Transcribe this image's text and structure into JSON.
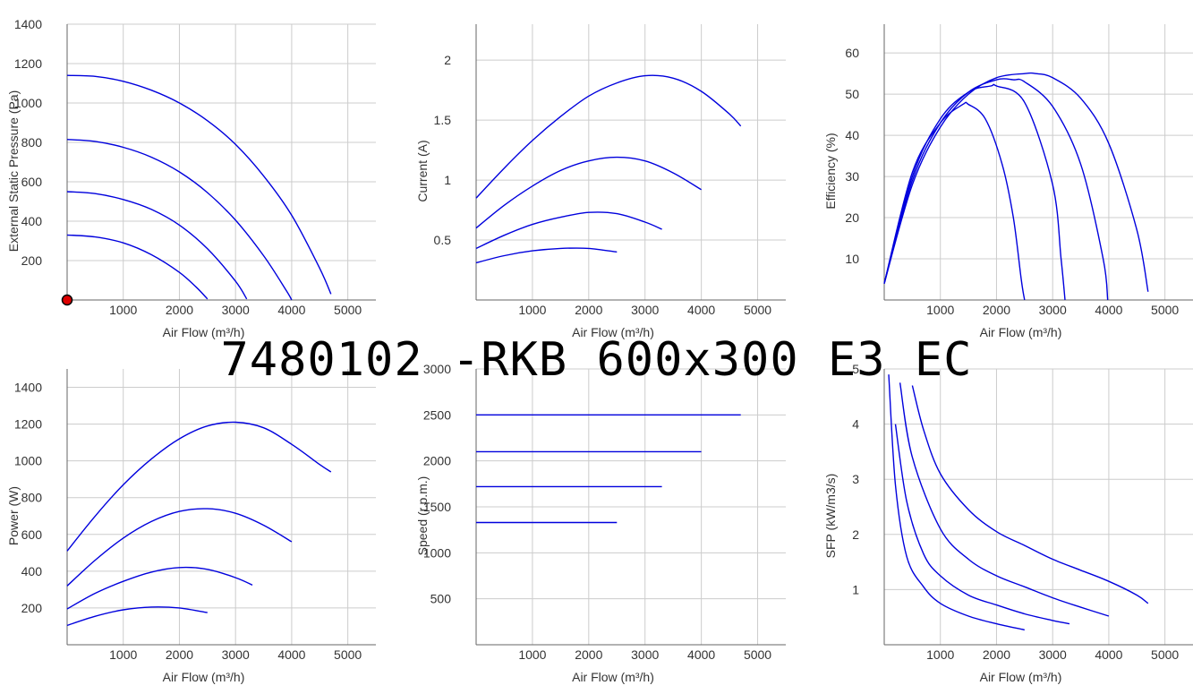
{
  "title": "7480102 -RKB 600x300 E3 EC",
  "colors": {
    "curve": "#0000dd",
    "grid": "#cccccc",
    "axis": "#666666",
    "marker": "#dd0000"
  },
  "chart_data": [
    {
      "type": "line",
      "xlabel": "Air Flow (m³/h)",
      "ylabel": "External Static Pressure (Pa)",
      "xlim": [
        0,
        5500
      ],
      "ylim": [
        0,
        1400
      ],
      "xticks": [
        1000,
        2000,
        3000,
        4000,
        5000
      ],
      "yticks": [
        200,
        400,
        600,
        800,
        1000,
        1200,
        1400
      ],
      "grid": true,
      "marker": {
        "x": 0,
        "y": 0
      },
      "series": [
        {
          "x": [
            0,
            500,
            1000,
            1500,
            2000,
            2500,
            3000,
            3500,
            4000,
            4500,
            4700
          ],
          "y": [
            1140,
            1135,
            1110,
            1065,
            1000,
            910,
            790,
            630,
            430,
            160,
            30
          ]
        },
        {
          "x": [
            0,
            500,
            1000,
            1500,
            2000,
            2500,
            3000,
            3500,
            3900,
            4000
          ],
          "y": [
            815,
            805,
            775,
            725,
            650,
            545,
            405,
            225,
            50,
            0
          ]
        },
        {
          "x": [
            0,
            500,
            1000,
            1500,
            2000,
            2500,
            3000,
            3200
          ],
          "y": [
            550,
            540,
            510,
            460,
            380,
            260,
            95,
            5
          ]
        },
        {
          "x": [
            0,
            500,
            1000,
            1500,
            2000,
            2300,
            2500
          ],
          "y": [
            330,
            320,
            290,
            230,
            140,
            65,
            5
          ]
        }
      ]
    },
    {
      "type": "line",
      "xlabel": "Air Flow (m³/h)",
      "ylabel": "Current (A)",
      "xlim": [
        0,
        5500
      ],
      "ylim": [
        0,
        2.3
      ],
      "xticks": [
        1000,
        2000,
        3000,
        4000,
        5000
      ],
      "yticks": [
        0.5,
        1,
        1.5,
        2
      ],
      "ytick_labels": [
        "0.5",
        "1",
        "1.5",
        "2"
      ],
      "grid": true,
      "series": [
        {
          "x": [
            0,
            500,
            1000,
            1500,
            2000,
            2500,
            3000,
            3500,
            4000,
            4500,
            4700
          ],
          "y": [
            0.85,
            1.1,
            1.33,
            1.53,
            1.7,
            1.81,
            1.87,
            1.85,
            1.74,
            1.55,
            1.45
          ]
        },
        {
          "x": [
            0,
            500,
            1000,
            1500,
            2000,
            2500,
            3000,
            3500,
            4000
          ],
          "y": [
            0.6,
            0.79,
            0.95,
            1.08,
            1.16,
            1.19,
            1.16,
            1.06,
            0.92
          ]
        },
        {
          "x": [
            0,
            500,
            1000,
            1500,
            2000,
            2500,
            3000,
            3300
          ],
          "y": [
            0.43,
            0.54,
            0.63,
            0.69,
            0.73,
            0.72,
            0.65,
            0.59
          ]
        },
        {
          "x": [
            0,
            500,
            1000,
            1500,
            2000,
            2500
          ],
          "y": [
            0.31,
            0.37,
            0.41,
            0.43,
            0.43,
            0.4
          ]
        }
      ]
    },
    {
      "type": "line",
      "xlabel": "Air Flow (m³/h)",
      "ylabel": "Efficiency (%)",
      "xlim": [
        0,
        5500
      ],
      "ylim": [
        0,
        67
      ],
      "xticks": [
        1000,
        2000,
        3000,
        4000,
        5000
      ],
      "yticks": [
        10,
        20,
        30,
        40,
        50,
        60
      ],
      "grid": true,
      "series": [
        {
          "x": [
            0,
            500,
            1000,
            1500,
            2000,
            2500,
            2700,
            3000,
            3500,
            4000,
            4500,
            4700
          ],
          "y": [
            4,
            28,
            42,
            50,
            54,
            55,
            55,
            54,
            49,
            38,
            17,
            2
          ]
        },
        {
          "x": [
            0,
            500,
            1000,
            1500,
            2000,
            2300,
            2500,
            3000,
            3500,
            3900,
            3980
          ],
          "y": [
            4,
            29,
            43,
            50.5,
            53.5,
            53.5,
            53,
            47,
            33,
            10,
            0
          ]
        },
        {
          "x": [
            0,
            500,
            1000,
            1500,
            1900,
            2000,
            2500,
            3000,
            3150,
            3220
          ],
          "y": [
            4,
            30,
            44,
            50.5,
            52,
            52,
            48,
            28,
            10,
            0
          ]
        },
        {
          "x": [
            0,
            500,
            1000,
            1400,
            1500,
            1800,
            2100,
            2300,
            2440,
            2500
          ],
          "y": [
            4,
            31,
            43,
            47.5,
            47.5,
            44,
            33,
            20,
            5,
            0
          ]
        }
      ]
    },
    {
      "type": "line",
      "xlabel": "Air Flow (m³/h)",
      "ylabel": "Power (W)",
      "xlim": [
        0,
        5500
      ],
      "ylim": [
        0,
        1500
      ],
      "xticks": [
        1000,
        2000,
        3000,
        4000,
        5000
      ],
      "yticks": [
        200,
        400,
        600,
        800,
        1000,
        1200,
        1400
      ],
      "grid": true,
      "series": [
        {
          "x": [
            0,
            500,
            1000,
            1500,
            2000,
            2500,
            3000,
            3500,
            4000,
            4500,
            4700
          ],
          "y": [
            510,
            700,
            870,
            1010,
            1120,
            1190,
            1210,
            1180,
            1090,
            980,
            940
          ]
        },
        {
          "x": [
            0,
            500,
            1000,
            1500,
            2000,
            2500,
            3000,
            3500,
            4000
          ],
          "y": [
            320,
            460,
            580,
            670,
            725,
            740,
            715,
            650,
            560
          ]
        },
        {
          "x": [
            0,
            500,
            1000,
            1500,
            2000,
            2500,
            3000,
            3300
          ],
          "y": [
            195,
            280,
            345,
            395,
            420,
            410,
            365,
            325
          ]
        },
        {
          "x": [
            0,
            500,
            1000,
            1500,
            2000,
            2500
          ],
          "y": [
            105,
            155,
            190,
            205,
            200,
            175
          ]
        }
      ]
    },
    {
      "type": "line",
      "xlabel": "Air Flow (m³/h)",
      "ylabel": "Speed (r.p.m.)",
      "xlim": [
        0,
        5500
      ],
      "ylim": [
        0,
        3000
      ],
      "xticks": [
        1000,
        2000,
        3000,
        4000,
        5000
      ],
      "yticks": [
        500,
        1000,
        1500,
        2000,
        2500,
        3000
      ],
      "grid": true,
      "series": [
        {
          "x": [
            0,
            4700
          ],
          "y": [
            2500,
            2500
          ]
        },
        {
          "x": [
            0,
            4000
          ],
          "y": [
            2100,
            2100
          ]
        },
        {
          "x": [
            0,
            3300
          ],
          "y": [
            1720,
            1720
          ]
        },
        {
          "x": [
            0,
            2500
          ],
          "y": [
            1330,
            1330
          ]
        }
      ]
    },
    {
      "type": "line",
      "xlabel": "Air Flow (m³/h)",
      "ylabel": "SFP (kW/m3/s)",
      "xlim": [
        0,
        5500
      ],
      "ylim": [
        0,
        5
      ],
      "xticks": [
        1000,
        2000,
        3000,
        4000,
        5000
      ],
      "yticks": [
        1,
        2,
        3,
        4,
        5
      ],
      "grid": true,
      "series": [
        {
          "x": [
            500,
            700,
            1000,
            1500,
            2000,
            2500,
            3000,
            3500,
            4000,
            4500,
            4700
          ],
          "y": [
            4.7,
            3.9,
            3.1,
            2.45,
            2.05,
            1.8,
            1.55,
            1.35,
            1.15,
            0.9,
            0.75
          ]
        },
        {
          "x": [
            280,
            500,
            1000,
            1500,
            2000,
            2500,
            3000,
            3500,
            4000
          ],
          "y": [
            4.75,
            3.4,
            2.1,
            1.55,
            1.25,
            1.05,
            0.85,
            0.68,
            0.52
          ]
        },
        {
          "x": [
            200,
            400,
            700,
            1000,
            1500,
            2000,
            2500,
            3000,
            3300
          ],
          "y": [
            4.0,
            2.6,
            1.65,
            1.25,
            0.9,
            0.72,
            0.56,
            0.44,
            0.38
          ]
        },
        {
          "x": [
            80,
            200,
            400,
            700,
            1000,
            1500,
            2000,
            2500
          ],
          "y": [
            4.9,
            2.9,
            1.6,
            1.05,
            0.75,
            0.52,
            0.38,
            0.27
          ]
        }
      ]
    }
  ]
}
